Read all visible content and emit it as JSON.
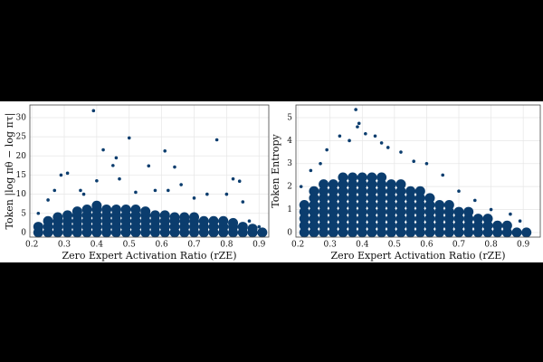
{
  "chart_data": [
    {
      "type": "scatter",
      "x_label": "Zero Expert Activation Ratio (rZE)",
      "y_label": "Token |log πθ − log πτ|",
      "xlim": [
        0.194,
        0.93
      ],
      "ylim": [
        -1.2,
        33.3
      ],
      "xticks": [
        0.2,
        0.3,
        0.4,
        0.5,
        0.6,
        0.7,
        0.8,
        0.9
      ],
      "yticks": [
        0,
        5,
        10,
        15,
        20,
        25,
        30
      ],
      "grid": true,
      "series": [
        {
          "color": "#0b3d6e",
          "x": [
            0.22,
            0.22,
            0.25,
            0.25,
            0.25,
            0.28,
            0.28,
            0.28,
            0.28,
            0.31,
            0.31,
            0.31,
            0.31,
            0.34,
            0.34,
            0.34,
            0.34,
            0.34,
            0.37,
            0.37,
            0.37,
            0.37,
            0.37,
            0.4,
            0.4,
            0.4,
            0.4,
            0.4,
            0.4,
            0.43,
            0.43,
            0.43,
            0.43,
            0.43,
            0.46,
            0.46,
            0.46,
            0.46,
            0.46,
            0.49,
            0.49,
            0.49,
            0.49,
            0.49,
            0.52,
            0.52,
            0.52,
            0.52,
            0.52,
            0.55,
            0.55,
            0.55,
            0.55,
            0.55,
            0.58,
            0.58,
            0.58,
            0.58,
            0.61,
            0.61,
            0.61,
            0.61,
            0.64,
            0.64,
            0.64,
            0.64,
            0.67,
            0.67,
            0.67,
            0.67,
            0.7,
            0.7,
            0.7,
            0.7,
            0.73,
            0.73,
            0.73,
            0.76,
            0.76,
            0.76,
            0.79,
            0.79,
            0.79,
            0.82,
            0.82,
            0.82,
            0.85,
            0.85,
            0.88,
            0.88,
            0.91
          ],
          "values": [
            0,
            1.5,
            0,
            1.5,
            3,
            0,
            1.5,
            3,
            4,
            0,
            1.5,
            3,
            4.5,
            0,
            1.5,
            3,
            4.5,
            5.5,
            0,
            1.5,
            3,
            4.5,
            6,
            0,
            1.5,
            3,
            4.5,
            6,
            7,
            0,
            1.5,
            3,
            4.5,
            6,
            0,
            1.5,
            3,
            4.5,
            6,
            0,
            1.5,
            3,
            4.5,
            6,
            0,
            1.5,
            3,
            4.5,
            6,
            0,
            1.5,
            3,
            4.5,
            5.5,
            0,
            1.5,
            3,
            4.5,
            0,
            1.5,
            3,
            4.5,
            0,
            1.5,
            3,
            4,
            0,
            1.5,
            3,
            4,
            0,
            1.5,
            3,
            4,
            0,
            1.5,
            3,
            0,
            1.5,
            3,
            0,
            1.5,
            3,
            0,
            1.5,
            2.5,
            0,
            1.5,
            0,
            1,
            0
          ]
        },
        {
          "color": "#0b3d6e",
          "x": [
            0.39,
            0.42,
            0.5,
            0.61,
            0.77,
            0.46,
            0.45,
            0.56,
            0.64,
            0.29,
            0.31,
            0.82,
            0.84,
            0.4,
            0.47,
            0.66,
            0.25,
            0.27,
            0.35,
            0.36,
            0.52,
            0.58,
            0.62,
            0.7,
            0.74,
            0.8,
            0.85,
            0.22,
            0.87,
            0.9
          ],
          "values": [
            31.8,
            21.6,
            24.7,
            21.3,
            24.2,
            19.5,
            17.5,
            17.4,
            17.1,
            15,
            15.5,
            14,
            13.4,
            13.5,
            14,
            12.5,
            8.5,
            11,
            11,
            10,
            10.5,
            11,
            11,
            9,
            10,
            10,
            8,
            5,
            3,
            1.5
          ]
        }
      ]
    },
    {
      "type": "scatter",
      "x_label": "Zero Expert Activation Ratio (rZE)",
      "y_label": "Token Entropy",
      "xlim": [
        0.194,
        0.953
      ],
      "ylim": [
        -0.2,
        5.55
      ],
      "xticks": [
        0.2,
        0.3,
        0.4,
        0.5,
        0.6,
        0.7,
        0.8,
        0.9
      ],
      "yticks": [
        0,
        1,
        2,
        3,
        4,
        5
      ],
      "grid": true,
      "series": [
        {
          "color": "#0b3d6e",
          "x": [
            0.22,
            0.22,
            0.22,
            0.22,
            0.22,
            0.25,
            0.25,
            0.25,
            0.25,
            0.25,
            0.25,
            0.25,
            0.28,
            0.28,
            0.28,
            0.28,
            0.28,
            0.28,
            0.28,
            0.28,
            0.31,
            0.31,
            0.31,
            0.31,
            0.31,
            0.31,
            0.31,
            0.31,
            0.34,
            0.34,
            0.34,
            0.34,
            0.34,
            0.34,
            0.34,
            0.34,
            0.34,
            0.37,
            0.37,
            0.37,
            0.37,
            0.37,
            0.37,
            0.37,
            0.37,
            0.37,
            0.4,
            0.4,
            0.4,
            0.4,
            0.4,
            0.4,
            0.4,
            0.4,
            0.4,
            0.43,
            0.43,
            0.43,
            0.43,
            0.43,
            0.43,
            0.43,
            0.43,
            0.43,
            0.46,
            0.46,
            0.46,
            0.46,
            0.46,
            0.46,
            0.46,
            0.46,
            0.46,
            0.49,
            0.49,
            0.49,
            0.49,
            0.49,
            0.49,
            0.49,
            0.49,
            0.52,
            0.52,
            0.52,
            0.52,
            0.52,
            0.52,
            0.52,
            0.52,
            0.55,
            0.55,
            0.55,
            0.55,
            0.55,
            0.55,
            0.55,
            0.58,
            0.58,
            0.58,
            0.58,
            0.58,
            0.58,
            0.58,
            0.61,
            0.61,
            0.61,
            0.61,
            0.61,
            0.61,
            0.64,
            0.64,
            0.64,
            0.64,
            0.64,
            0.67,
            0.67,
            0.67,
            0.67,
            0.67,
            0.7,
            0.7,
            0.7,
            0.7,
            0.73,
            0.73,
            0.73,
            0.73,
            0.76,
            0.76,
            0.76,
            0.79,
            0.79,
            0.79,
            0.82,
            0.82,
            0.85,
            0.85,
            0.88,
            0.91
          ],
          "values": [
            0,
            0.3,
            0.6,
            0.9,
            1.2,
            0,
            0.3,
            0.6,
            0.9,
            1.2,
            1.5,
            1.8,
            0,
            0.3,
            0.6,
            0.9,
            1.2,
            1.5,
            1.8,
            2.1,
            0,
            0.3,
            0.6,
            0.9,
            1.2,
            1.5,
            1.8,
            2.1,
            0,
            0.3,
            0.6,
            0.9,
            1.2,
            1.5,
            1.8,
            2.1,
            2.4,
            0,
            0.3,
            0.6,
            0.9,
            1.2,
            1.5,
            1.8,
            2.1,
            2.4,
            0,
            0.3,
            0.6,
            0.9,
            1.2,
            1.5,
            1.8,
            2.1,
            2.4,
            0,
            0.3,
            0.6,
            0.9,
            1.2,
            1.5,
            1.8,
            2.1,
            2.4,
            0,
            0.3,
            0.6,
            0.9,
            1.2,
            1.5,
            1.8,
            2.1,
            2.4,
            0,
            0.3,
            0.6,
            0.9,
            1.2,
            1.5,
            1.8,
            2.1,
            0,
            0.3,
            0.6,
            0.9,
            1.2,
            1.5,
            1.8,
            2.1,
            0,
            0.3,
            0.6,
            0.9,
            1.2,
            1.5,
            1.8,
            0,
            0.3,
            0.6,
            0.9,
            1.2,
            1.5,
            1.8,
            0,
            0.3,
            0.6,
            0.9,
            1.2,
            1.5,
            0,
            0.3,
            0.6,
            0.9,
            1.2,
            0,
            0.3,
            0.6,
            0.9,
            1.2,
            0,
            0.3,
            0.6,
            0.9,
            0,
            0.3,
            0.6,
            0.9,
            0,
            0.3,
            0.6,
            0,
            0.3,
            0.6,
            0,
            0.3,
            0,
            0.3,
            0,
            0
          ]
        },
        {
          "color": "#0b3d6e",
          "x": [
            0.38,
            0.39,
            0.385,
            0.41,
            0.44,
            0.33,
            0.36,
            0.46,
            0.29,
            0.52,
            0.56,
            0.6,
            0.24,
            0.65,
            0.7,
            0.75,
            0.8,
            0.86,
            0.89,
            0.21,
            0.27,
            0.48
          ],
          "values": [
            5.35,
            4.75,
            4.6,
            4.3,
            4.2,
            4.2,
            4.0,
            3.9,
            3.6,
            3.5,
            3.1,
            3.0,
            2.7,
            2.5,
            1.8,
            1.4,
            1.0,
            0.8,
            0.5,
            2.0,
            3.0,
            3.7
          ]
        }
      ]
    }
  ]
}
